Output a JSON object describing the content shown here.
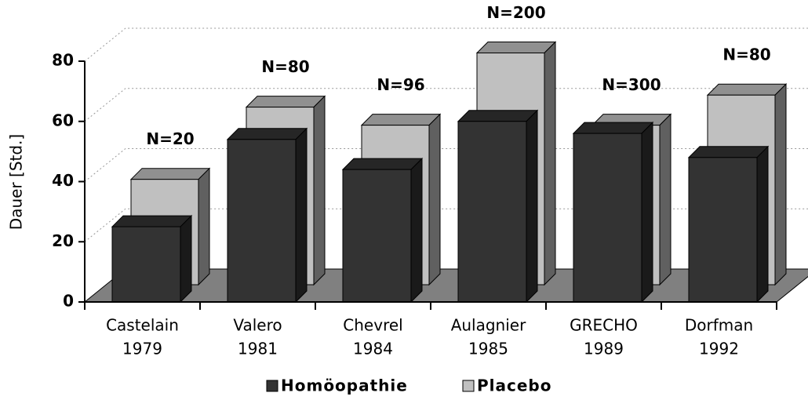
{
  "chart_data": {
    "type": "bar3d",
    "ylabel": "Dauer [Std.]",
    "categories": [
      [
        "Castelain",
        "1979"
      ],
      [
        "Valero",
        "1981"
      ],
      [
        "Chevrel",
        "1984"
      ],
      [
        "Aulagnier",
        "1985"
      ],
      [
        "GRECHO",
        "1989"
      ],
      [
        "Dorfman",
        "1992"
      ]
    ],
    "series": [
      {
        "name": "Homöopathie",
        "color": "#333333",
        "values": [
          25,
          54,
          44,
          60,
          56,
          48
        ]
      },
      {
        "name": "Placebo",
        "color": "#c0c0c0",
        "values": [
          35,
          59,
          53,
          77,
          53,
          63
        ]
      }
    ],
    "annotations": [
      "N=20",
      "N=80",
      "N=96",
      "N=200",
      "N=300",
      "N=80"
    ],
    "ylim": [
      0,
      80
    ],
    "yticks": [
      0,
      20,
      40,
      60,
      80
    ],
    "grid": true
  }
}
